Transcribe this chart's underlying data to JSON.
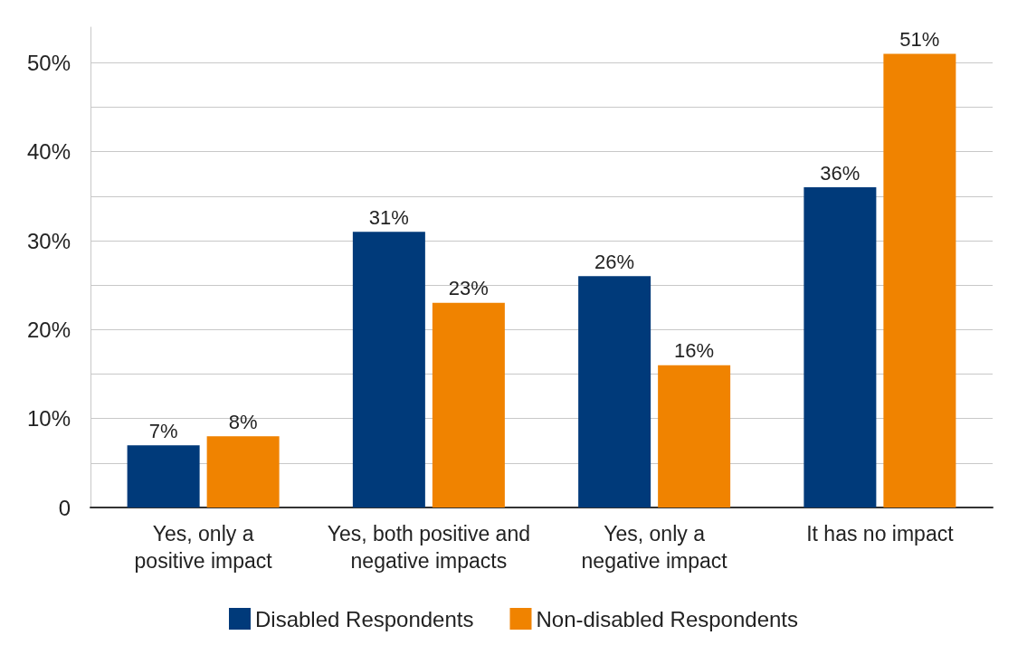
{
  "chart_data": {
    "type": "bar",
    "categories": [
      "Yes, only a\npositive impact",
      "Yes, both positive and\nnegative impacts",
      "Yes, only a\nnegative impact",
      "It has no impact"
    ],
    "series": [
      {
        "name": "Disabled Respondents",
        "color": "#003a7a",
        "values": [
          7,
          31,
          26,
          36
        ],
        "value_labels": [
          "7%",
          "31%",
          "26%",
          "36%"
        ]
      },
      {
        "name": "Non-disabled Respondents",
        "color": "#f08300",
        "values": [
          8,
          23,
          16,
          51
        ],
        "value_labels": [
          "8%",
          "23%",
          "16%",
          "51%"
        ]
      }
    ],
    "ylim": [
      0,
      54
    ],
    "yticks": [
      {
        "value": 0,
        "label": "0"
      },
      {
        "value": 5,
        "label": null
      },
      {
        "value": 10,
        "label": "10%"
      },
      {
        "value": 15,
        "label": null
      },
      {
        "value": 20,
        "label": "20%"
      },
      {
        "value": 25,
        "label": null
      },
      {
        "value": 30,
        "label": "30%"
      },
      {
        "value": 35,
        "label": null
      },
      {
        "value": 40,
        "label": "40%"
      },
      {
        "value": 45,
        "label": null
      },
      {
        "value": 50,
        "label": "50%"
      }
    ],
    "grid": "y",
    "legend": "bottom"
  }
}
